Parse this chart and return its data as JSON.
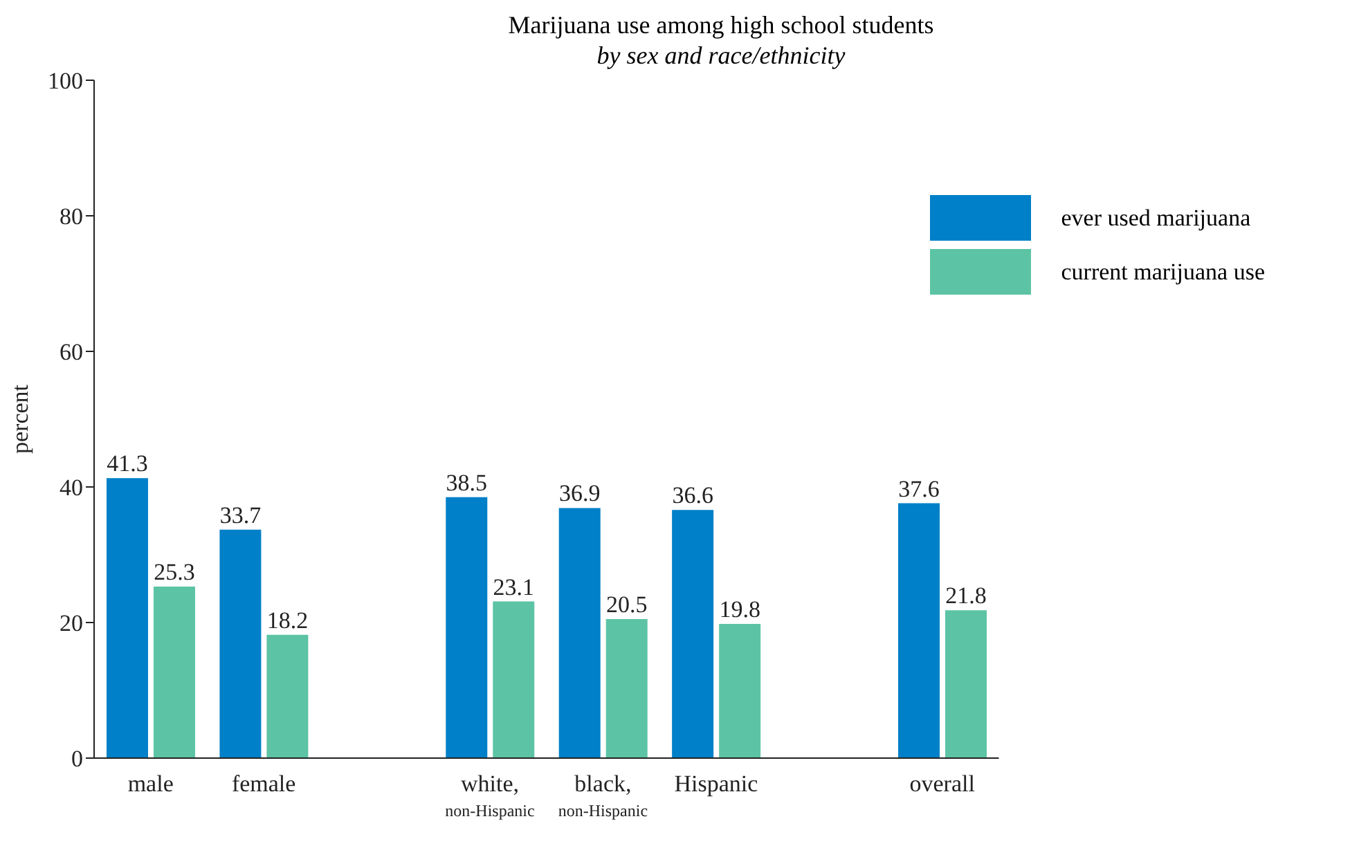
{
  "chart_data": {
    "type": "bar",
    "title": "Marijuana use among high school students",
    "subtitle": "by sex and race/ethnicity",
    "ylabel": "percent",
    "categories": [
      "male",
      "female",
      null,
      "white,\nnon-Hispanic",
      "black,\nnon-Hispanic",
      "Hispanic",
      null,
      "overall"
    ],
    "series": [
      {
        "name": "ever used marijuana",
        "color": "#0080c8",
        "values": [
          41.3,
          33.7,
          null,
          38.5,
          36.9,
          36.6,
          null,
          37.6
        ]
      },
      {
        "name": "current marijuana use",
        "color": "#5cc4a4",
        "values": [
          25.3,
          18.2,
          null,
          23.1,
          20.5,
          19.8,
          null,
          21.8
        ]
      }
    ],
    "ylim": [
      0,
      100
    ],
    "yticks": [
      0,
      20,
      40,
      60,
      80,
      100
    ],
    "grid": false,
    "legend": "top right",
    "data_labels": true
  }
}
